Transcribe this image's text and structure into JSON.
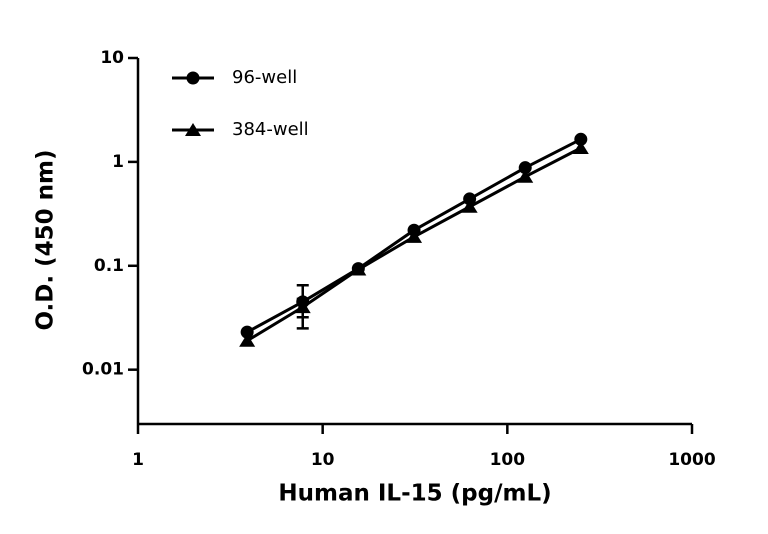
{
  "chart_data": {
    "type": "line",
    "xlabel": "Human IL-15 (pg/mL)",
    "ylabel": "O.D. (450 nm)",
    "x": [
      3.9,
      7.8,
      15.6,
      31.25,
      62.5,
      125,
      250
    ],
    "series": [
      {
        "name": "96-well",
        "color": "#000000",
        "marker": "circle",
        "values": [
          0.023,
          0.045,
          0.094,
          0.22,
          0.44,
          0.88,
          1.65
        ],
        "errors": [
          0,
          0.02,
          0,
          0,
          0,
          0,
          0
        ]
      },
      {
        "name": "384-well",
        "color": "#000000",
        "marker": "triangle",
        "values": [
          0.019,
          0.04,
          0.092,
          0.19,
          0.37,
          0.72,
          1.36
        ],
        "errors": [
          0,
          0.008,
          0,
          0,
          0,
          0,
          0
        ]
      }
    ],
    "xscale": "log",
    "yscale": "log",
    "xlim": [
      1,
      1000
    ],
    "ylim": [
      0.003,
      10
    ],
    "xticks": [
      1,
      10,
      100,
      1000
    ],
    "yticks": [
      0.01,
      0.1,
      1,
      10
    ],
    "legend": "upper left"
  }
}
